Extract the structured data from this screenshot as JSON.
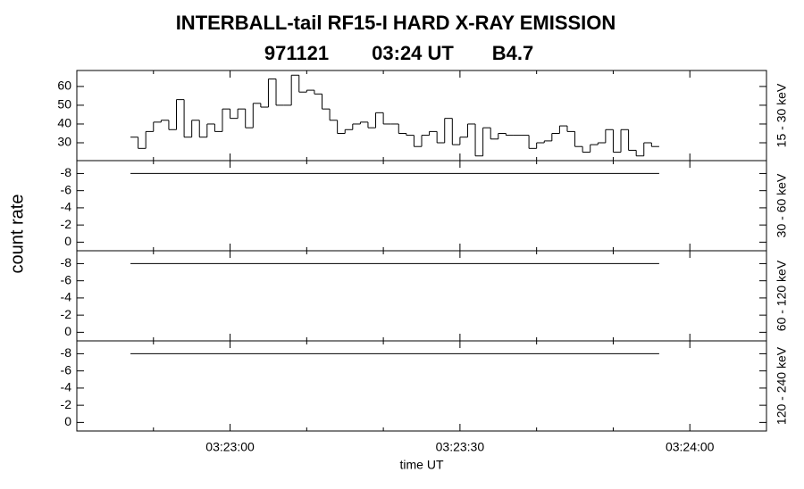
{
  "chart_data": {
    "type": "stacked",
    "title": "INTERBALL-tail  RF15-I  HARD  X-RAY  EMISSION",
    "subtitle": [
      "971121",
      "03:24 UT",
      "B4.7"
    ],
    "xlabel": "time UT",
    "ylabel": "count rate",
    "xlim": [
      12160,
      12250
    ],
    "xticks": [
      {
        "value": 12180,
        "label": "03:23:00"
      },
      {
        "value": 12210,
        "label": "03:23:30"
      },
      {
        "value": 12240,
        "label": "03:24:00"
      }
    ],
    "xminorticks": [
      12170,
      12190,
      12200,
      12220,
      12230
    ],
    "panels": [
      {
        "type": "histogram",
        "label": "15 - 30 keV",
        "ylim": [
          20.5,
          68.5
        ],
        "yticks": [
          30,
          40,
          50,
          60
        ],
        "bins": [
          12167,
          12168,
          12169,
          12170,
          12171,
          12172,
          12173,
          12174,
          12175,
          12176,
          12177,
          12178,
          12179,
          12180,
          12181,
          12182,
          12183,
          12184,
          12185,
          12186,
          12187,
          12188,
          12189,
          12190,
          12191,
          12192,
          12193,
          12194,
          12195,
          12196,
          12197,
          12198,
          12199,
          12200,
          12201,
          12202,
          12203,
          12204,
          12205,
          12206,
          12207,
          12208,
          12209,
          12210,
          12211,
          12212,
          12213,
          12214,
          12215,
          12216,
          12217,
          12218,
          12219,
          12220,
          12221,
          12222,
          12223,
          12224,
          12225,
          12226,
          12227,
          12228,
          12229,
          12230,
          12231,
          12232,
          12233,
          12234,
          12235,
          12236
        ],
        "values": [
          33,
          27,
          36,
          41,
          42,
          37,
          53,
          33,
          42,
          33,
          40,
          36,
          48,
          43,
          48,
          38,
          51,
          49,
          64,
          50,
          50,
          66,
          57,
          58,
          56,
          48,
          42,
          35,
          37,
          40,
          41,
          38,
          46,
          40,
          40,
          35,
          34,
          28,
          34,
          36,
          30,
          43,
          29,
          33,
          40,
          23,
          38,
          32,
          35,
          34,
          34,
          34,
          27,
          30,
          31,
          35,
          39,
          36,
          28,
          25,
          29,
          30,
          37,
          25,
          37,
          26,
          23,
          30,
          28
        ]
      },
      {
        "type": "line",
        "label": "30 - 60 keV",
        "ylim": [
          1,
          -9.5
        ],
        "yticks": [
          -8,
          -6,
          -4,
          -2,
          0
        ],
        "x": [
          12167,
          12236
        ],
        "values": [
          -8,
          -8
        ]
      },
      {
        "type": "line",
        "label": "60 - 120 keV",
        "ylim": [
          1,
          -9.5
        ],
        "yticks": [
          -8,
          -6,
          -4,
          -2,
          0
        ],
        "x": [
          12167,
          12236
        ],
        "values": [
          -8,
          -8
        ]
      },
      {
        "type": "line",
        "label": "120 - 240 keV",
        "ylim": [
          1,
          -9.5
        ],
        "yticks": [
          -8,
          -6,
          -4,
          -2,
          0
        ],
        "x": [
          12167,
          12236
        ],
        "values": [
          -8,
          -8
        ]
      }
    ]
  }
}
